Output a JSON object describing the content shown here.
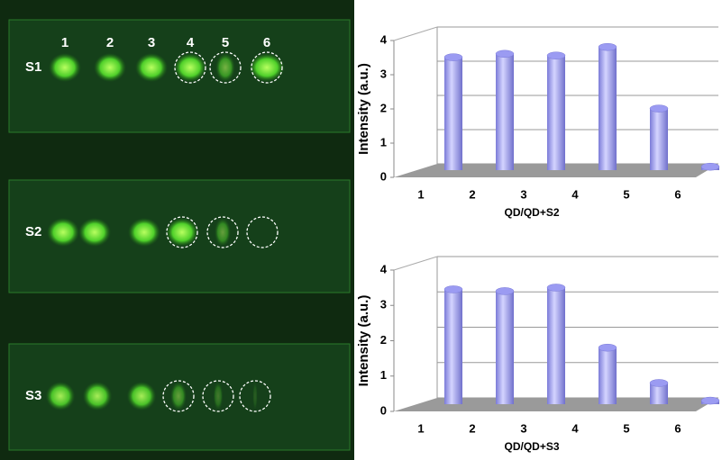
{
  "image": {
    "panels": [
      "S1",
      "S2",
      "S3"
    ],
    "lane_labels": [
      "1",
      "2",
      "3",
      "4",
      "5",
      "6"
    ]
  },
  "chart_data": [
    {
      "type": "bar",
      "categories": [
        "1",
        "2",
        "3",
        "4",
        "5",
        "6"
      ],
      "values": [
        3.3,
        3.4,
        3.35,
        3.6,
        1.8,
        0.1
      ],
      "color": "#9b9bf2",
      "ylim": [
        0,
        4
      ],
      "yticks": [
        0,
        1,
        2,
        3,
        4
      ],
      "grid": true,
      "ylabel": "Intensity (a.u.)",
      "xlabel": "QD/QD+S2"
    },
    {
      "type": "bar",
      "categories": [
        "1",
        "2",
        "3",
        "4",
        "5",
        "6"
      ],
      "values": [
        3.25,
        3.2,
        3.3,
        1.6,
        0.6,
        0.1
      ],
      "color": "#9b9bf2",
      "ylim": [
        0,
        4
      ],
      "yticks": [
        0,
        1,
        2,
        3,
        4
      ],
      "grid": true,
      "ylabel": "Intensity (a.u.)",
      "xlabel": "QD/QD+S3"
    }
  ]
}
